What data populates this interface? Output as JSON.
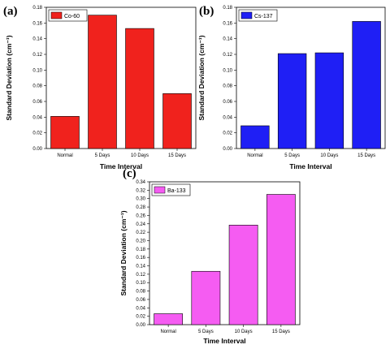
{
  "chart_data": [
    {
      "type": "bar",
      "panel_label": "(a)",
      "categories": [
        "Normal",
        "5 Days",
        "10 Days",
        "15 Days"
      ],
      "series": [
        {
          "name": "Co-60",
          "values": [
            0.041,
            0.17,
            0.153,
            0.07
          ]
        }
      ],
      "xlabel": "Time Interval",
      "ylabel": "Standard Deviation (cm⁻¹)",
      "ylim": [
        0,
        0.18
      ],
      "yticks": [
        "0.00",
        "0.02",
        "0.04",
        "0.06",
        "0.08",
        "0.10",
        "0.12",
        "0.14",
        "0.16",
        "0.18"
      ],
      "bar_color": "#f0221d",
      "legend_position": "top-left",
      "grid": false
    },
    {
      "type": "bar",
      "panel_label": "(b)",
      "categories": [
        "Normal",
        "5 Days",
        "10 Days",
        "15 Days"
      ],
      "series": [
        {
          "name": "Cs-137",
          "values": [
            0.029,
            0.121,
            0.122,
            0.162
          ]
        }
      ],
      "xlabel": "Time Interval",
      "ylabel": "Standard Deviation (cm⁻¹)",
      "ylim": [
        0,
        0.18
      ],
      "yticks": [
        "0.00",
        "0.02",
        "0.04",
        "0.06",
        "0.08",
        "0.10",
        "0.12",
        "0.14",
        "0.16",
        "0.18"
      ],
      "bar_color": "#1f1ff5",
      "legend_position": "top-left",
      "grid": false
    },
    {
      "type": "bar",
      "panel_label": "(c)",
      "categories": [
        "Normal",
        "5 Days",
        "10 Days",
        "15 Days"
      ],
      "series": [
        {
          "name": "Ba-133",
          "values": [
            0.026,
            0.127,
            0.237,
            0.31
          ]
        }
      ],
      "xlabel": "Time Interval",
      "ylabel": "Standard Deviation (cm⁻¹)",
      "ylim": [
        0,
        0.34
      ],
      "yticks": [
        "0.00",
        "0.02",
        "0.04",
        "0.06",
        "0.08",
        "0.10",
        "0.12",
        "0.14",
        "0.16",
        "0.18",
        "0.20",
        "0.22",
        "0.24",
        "0.26",
        "0.28",
        "0.30",
        "0.32",
        "0.34"
      ],
      "bar_color": "#f55cf2",
      "legend_position": "top-left",
      "grid": false
    }
  ]
}
